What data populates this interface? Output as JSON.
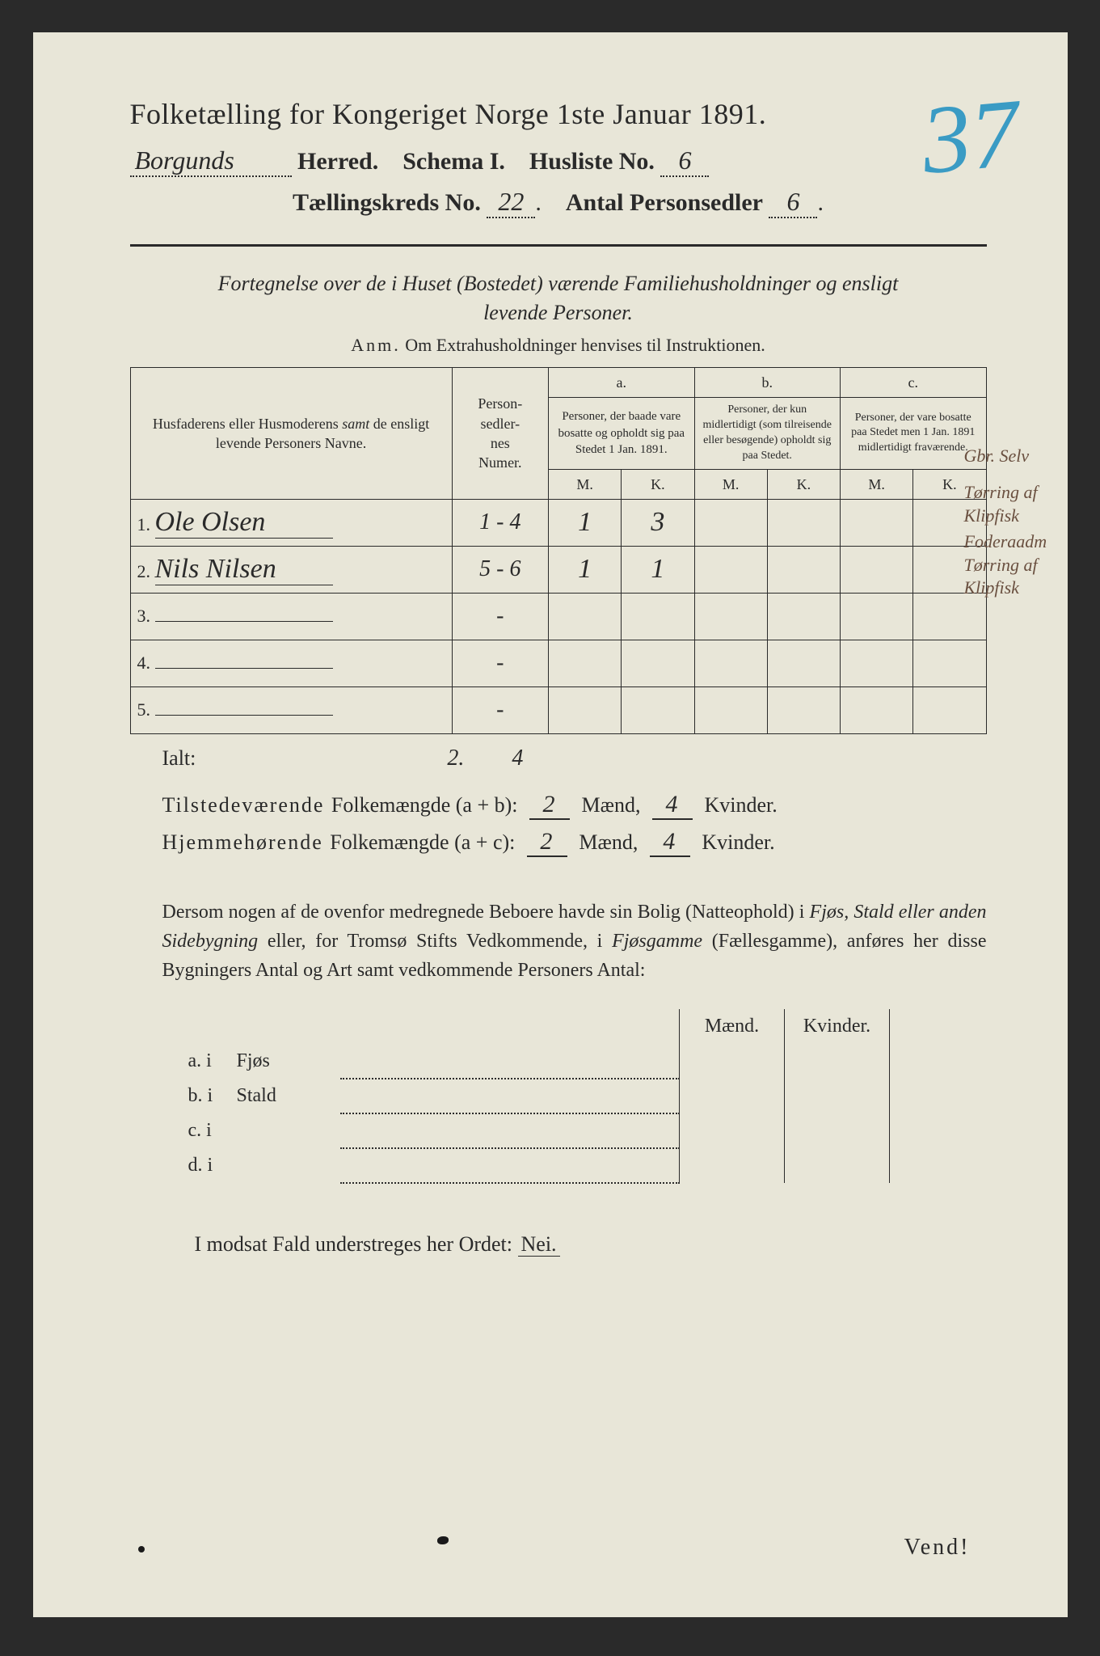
{
  "corner_number": "37",
  "title": "Folketælling for Kongeriget Norge 1ste Januar 1891.",
  "header": {
    "herred_value": "Borgunds",
    "herred_label": "Herred.",
    "schema_label": "Schema I.",
    "husliste_label": "Husliste No.",
    "husliste_value": "6",
    "kreds_label": "Tællingskreds No.",
    "kreds_value": "22",
    "personsedler_label": "Antal Personsedler",
    "personsedler_value": "6"
  },
  "subtitle_line1": "Fortegnelse over de i Huset (Bostedet) værende Familiehusholdninger og ensligt",
  "subtitle_line2": "levende Personer.",
  "anm_prefix": "Anm.",
  "anm_text": "Om Extrahusholdninger henvises til Instruktionen.",
  "table": {
    "head_names": "Husfaderens eller Husmoderens samt de ensligt levende Personers Navne.",
    "head_num": "Person-\nsedler-\nnes\nNumer.",
    "head_a_label": "a.",
    "head_a": "Personer, der baade vare bosatte og opholdt sig paa Stedet 1 Jan. 1891.",
    "head_b_label": "b.",
    "head_b": "Personer, der kun midlertidigt (som tilreisende eller besøgende) opholdt sig paa Stedet.",
    "head_c_label": "c.",
    "head_c": "Personer, der vare bosatte paa Stedet men 1 Jan. 1891 midlertidigt fraværende.",
    "mk_m": "M.",
    "mk_k": "K.",
    "rows": [
      {
        "n": "1.",
        "name": "Ole Olsen",
        "num": "1 - 4",
        "a_m": "1",
        "a_k": "3",
        "b_m": "",
        "b_k": "",
        "c_m": "",
        "c_k": ""
      },
      {
        "n": "2.",
        "name": "Nils Nilsen",
        "num": "5 - 6",
        "a_m": "1",
        "a_k": "1",
        "b_m": "",
        "b_k": "",
        "c_m": "",
        "c_k": ""
      },
      {
        "n": "3.",
        "name": "",
        "num": "-",
        "a_m": "",
        "a_k": "",
        "b_m": "",
        "b_k": "",
        "c_m": "",
        "c_k": ""
      },
      {
        "n": "4.",
        "name": "",
        "num": "-",
        "a_m": "",
        "a_k": "",
        "b_m": "",
        "b_k": "",
        "c_m": "",
        "c_k": ""
      },
      {
        "n": "5.",
        "name": "",
        "num": "-",
        "a_m": "",
        "a_k": "",
        "b_m": "",
        "b_k": "",
        "c_m": "",
        "c_k": ""
      }
    ]
  },
  "margin_notes": {
    "top": "Gbr. Selv",
    "r1": "Tørring af Klipfisk",
    "r2": "Foderaadm Tørring af Klipfisk"
  },
  "ialt_label": "Ialt:",
  "ialt_m": "2.",
  "ialt_k": "4",
  "summary": {
    "line1_a": "Tilstedeværende",
    "line1_b": "Folkemængde (a + b):",
    "line2_a": "Hjemmehørende",
    "line2_b": "Folkemængde (a + c):",
    "maend": "Mænd,",
    "kvinder": "Kvinder.",
    "v1_m": "2",
    "v1_k": "4",
    "v2_m": "2",
    "v2_k": "4"
  },
  "para": "Dersom nogen af de ovenfor medregnede Beboere havde sin Bolig (Natteophold) i Fjøs, Stald eller anden Sidebygning eller, for Tromsø Stifts Vedkommende, i Fjøsgamme (Fællesgamme), anføres her disse Bygningers Antal og Art samt vedkommende Personers Antal:",
  "lower": {
    "maend": "Mænd.",
    "kvinder": "Kvinder.",
    "rows": [
      {
        "lab": "a.  i",
        "type": "Fjøs"
      },
      {
        "lab": "b.  i",
        "type": "Stald"
      },
      {
        "lab": "c.  i",
        "type": ""
      },
      {
        "lab": "d.  i",
        "type": ""
      }
    ]
  },
  "bottom": "I modsat Fald understreges her Ordet:",
  "nei": "Nei.",
  "vend": "Vend!",
  "colors": {
    "paper": "#e8e6d8",
    "ink": "#2a2a2a",
    "blue_pencil": "#3a9bc4",
    "margin_ink": "#6a5040"
  }
}
